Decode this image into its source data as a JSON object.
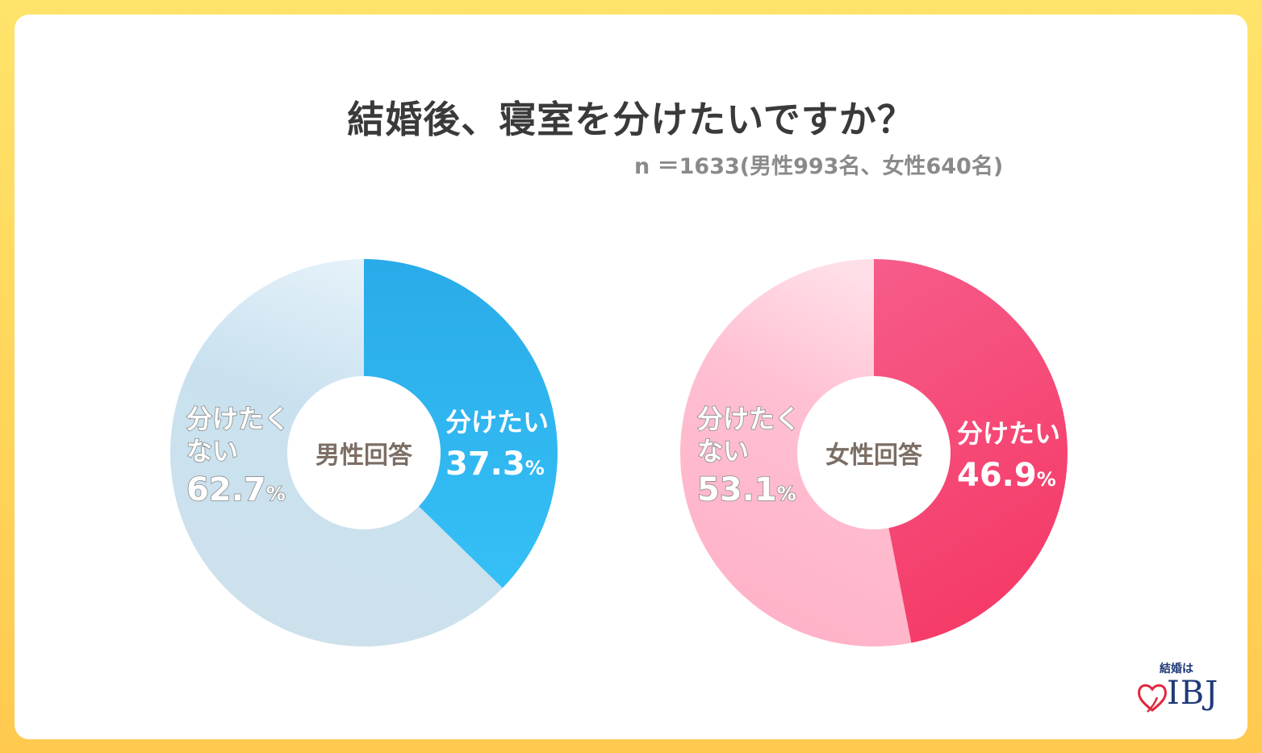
{
  "title": "結婚後、寝室を分けたいですか？",
  "subtitle": "n ＝1633(男性993名、女性640名)",
  "colors": {
    "male_yes": "#2ab0ee",
    "male_no": "#cce2ef",
    "female_yes": "#f6517f",
    "female_no": "#ffb2c8",
    "center_text": "#7c6e65"
  },
  "chart_data": [
    {
      "type": "pie",
      "title": "男性回答",
      "categories": [
        "分けたい",
        "分けたくない"
      ],
      "values": [
        37.3,
        62.7
      ],
      "unit": "%"
    },
    {
      "type": "pie",
      "title": "女性回答",
      "categories": [
        "分けたい",
        "分けたくない"
      ],
      "values": [
        46.9,
        53.1
      ],
      "unit": "%"
    }
  ],
  "labels": {
    "male": {
      "yes_label": "分けたい",
      "yes_value": "37.3",
      "no_label_line1": "分けたく",
      "no_label_line2": "ない",
      "no_value": "62.7",
      "percent": "%"
    },
    "female": {
      "yes_label": "分けたい",
      "yes_value": "46.9",
      "no_label_line1": "分けたく",
      "no_label_line2": "ない",
      "no_value": "53.1",
      "percent": "%"
    }
  },
  "logo": {
    "tagline": "結婚は",
    "brand": "IBJ"
  }
}
